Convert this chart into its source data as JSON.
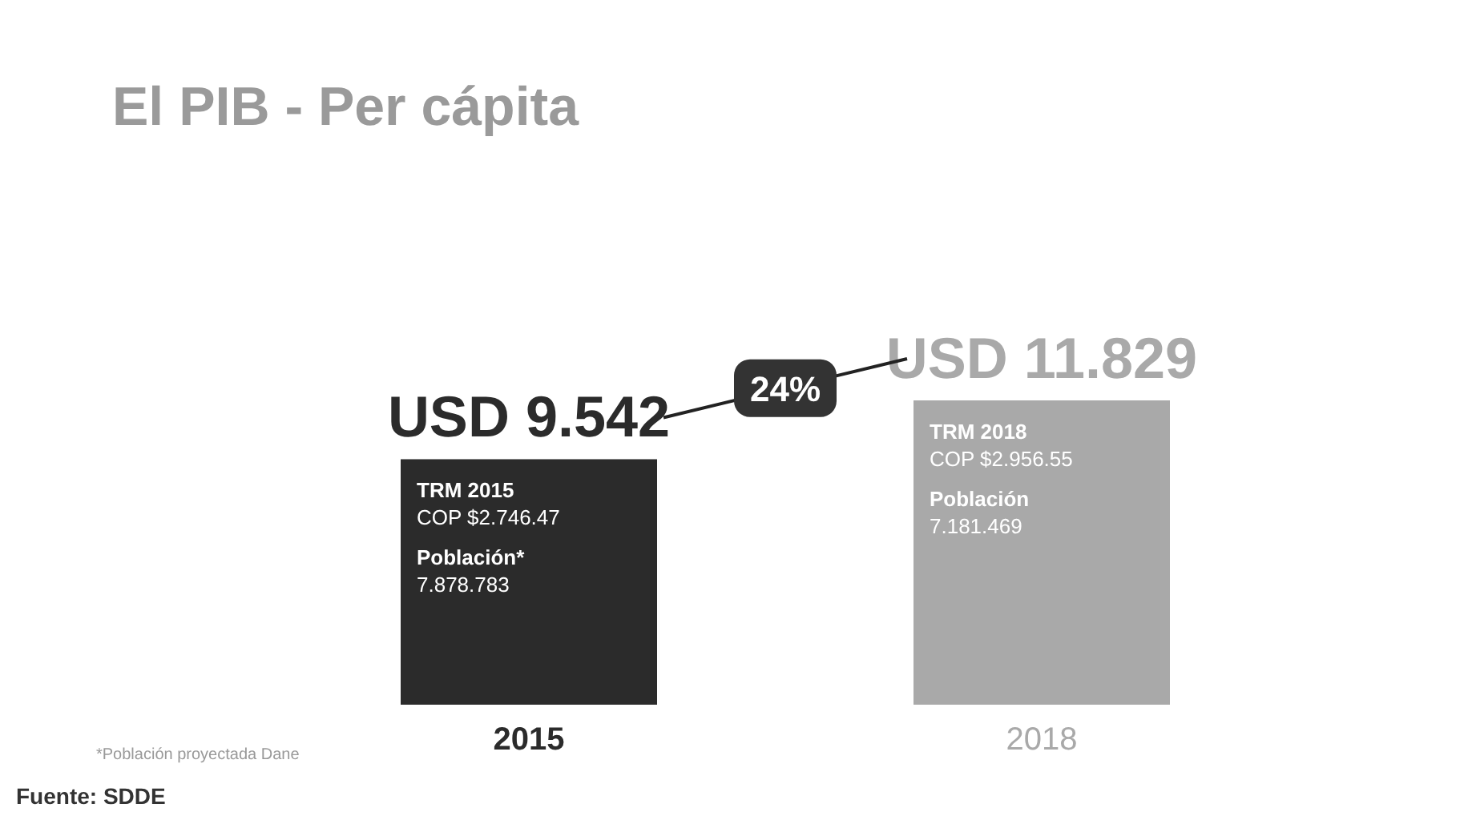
{
  "chart_data": {
    "type": "bar",
    "title": "El PIB - Per cápita",
    "categories": [
      "2015",
      "2018"
    ],
    "values": [
      9542,
      11829
    ],
    "colors": [
      "#2b2b2b",
      "#a9a9a9"
    ],
    "value_labels": [
      "USD 9.542",
      "USD 11.829"
    ],
    "annotations": [
      "24%",
      "*Población proyectada Dane",
      "Fuente: SDDE",
      "TRM 2015",
      "COP $2.746.47",
      "Población*",
      "7.878.783",
      "TRM 2018",
      "COP $2.956.55",
      "Población",
      "7.181.469"
    ]
  }
}
